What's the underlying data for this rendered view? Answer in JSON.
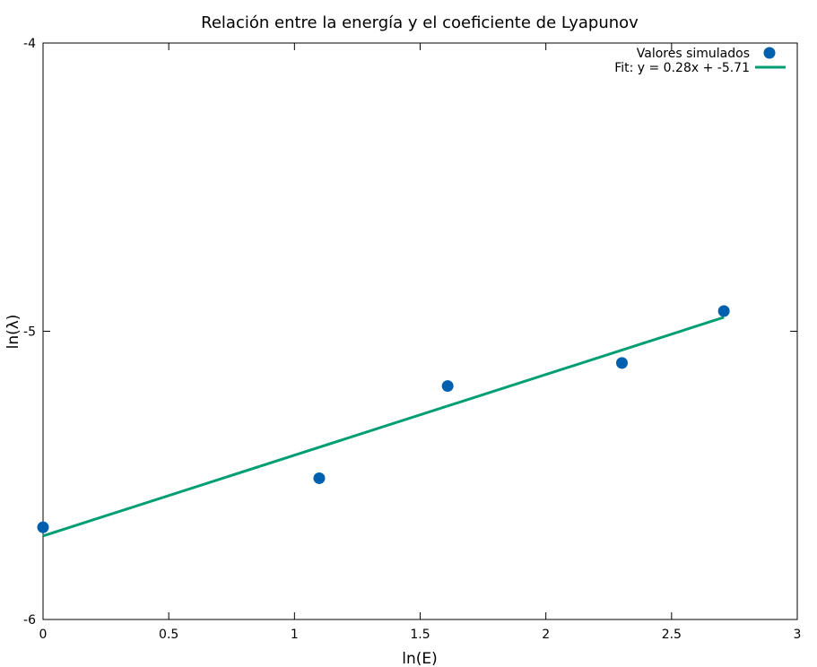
{
  "chart_data": {
    "type": "scatter",
    "title": "Relación entre la energía y el coeficiente de Lyapunov",
    "xlabel": "ln(E)",
    "ylabel": "ln(λ)",
    "xlim": [
      0,
      3
    ],
    "ylim": [
      -6,
      -4
    ],
    "xticks": [
      0,
      0.5,
      1,
      1.5,
      2,
      2.5,
      3
    ],
    "xtick_labels": [
      "0",
      "0.5",
      "1",
      "1.5",
      "2",
      "2.5",
      "3"
    ],
    "yticks": [
      -6,
      -5,
      -4
    ],
    "ytick_labels": [
      "-6",
      "-5",
      "-4"
    ],
    "grid": false,
    "legend_position": "top-right",
    "series": [
      {
        "name": "Valores simulados",
        "kind": "points",
        "color": "#0060ad",
        "x": [
          0,
          1.0986,
          1.6094,
          2.3026,
          2.7081
        ],
        "y": [
          -5.68,
          -5.51,
          -5.19,
          -5.11,
          -4.93
        ]
      },
      {
        "name": "Fit: y = 0.28x + -5.71",
        "kind": "line",
        "color": "#009e73",
        "slope": 0.28,
        "intercept": -5.71,
        "x_range": [
          0,
          2.7081
        ]
      }
    ]
  }
}
